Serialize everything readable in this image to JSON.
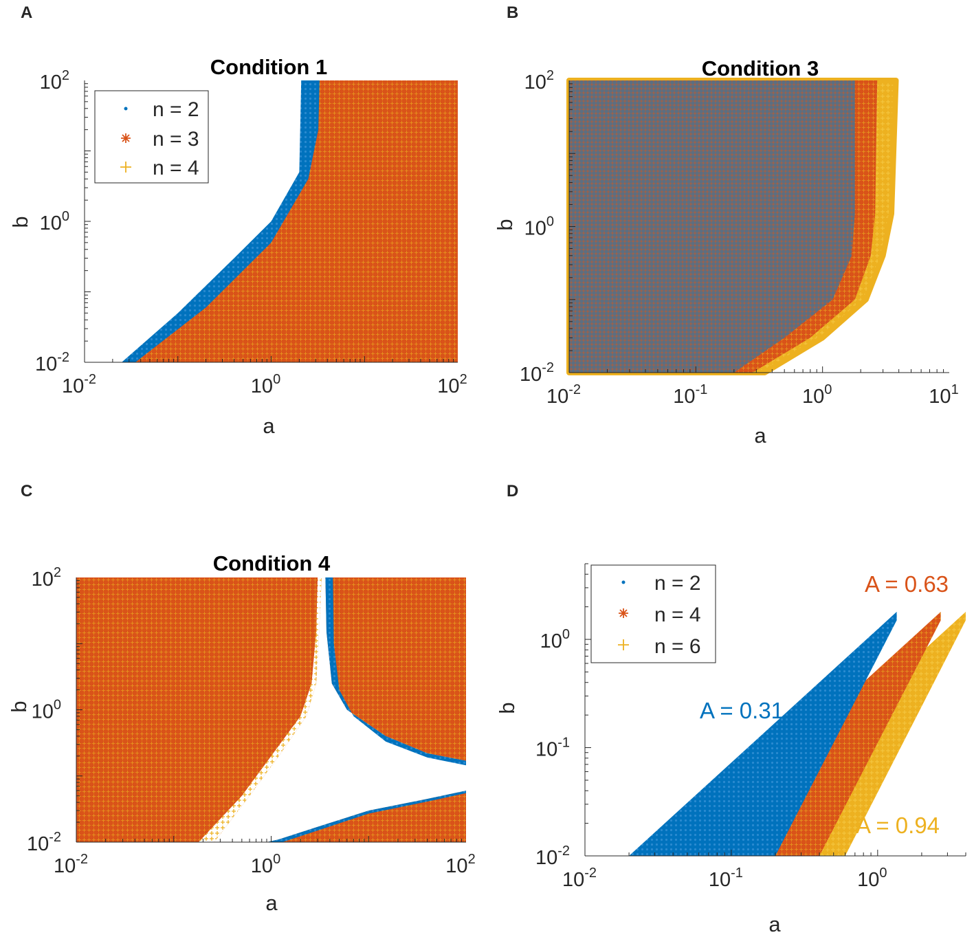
{
  "colors": {
    "n2": "#0072BD",
    "n3": "#D95319",
    "n4": "#EDB120",
    "axis": "#262626"
  },
  "chart_data": [
    {
      "panel": "A",
      "title": "Condition 1",
      "type": "scatter",
      "xlabel": "a",
      "ylabel": "b",
      "xscale": "log",
      "yscale": "log",
      "xlim": [
        0.01,
        100
      ],
      "ylim": [
        0.01,
        100
      ],
      "xticks": [
        {
          "base": "10",
          "exp": "-2"
        },
        {
          "base": "10",
          "exp": "0"
        },
        {
          "base": "10",
          "exp": "2"
        }
      ],
      "yticks": [
        {
          "base": "10",
          "exp": "-2"
        },
        {
          "base": "10",
          "exp": "0"
        },
        {
          "base": "10",
          "exp": "2"
        }
      ],
      "legend": {
        "position": "top-left",
        "entries": [
          "n = 2",
          "n = 3",
          "n = 4"
        ]
      },
      "series": [
        {
          "name": "n = 2",
          "marker": "dot",
          "region_boundary": [
            [
              0.025,
              0.01
            ],
            [
              0.1,
              0.05
            ],
            [
              0.4,
              0.3
            ],
            [
              1.0,
              1.0
            ],
            [
              2.0,
              5.0
            ],
            [
              2.1,
              100
            ]
          ]
        },
        {
          "name": "n = 3",
          "marker": "star",
          "region_boundary": [
            [
              0.035,
              0.01
            ],
            [
              0.2,
              0.06
            ],
            [
              1.0,
              0.5
            ],
            [
              2.5,
              4.0
            ],
            [
              3.2,
              20
            ],
            [
              3.3,
              100
            ]
          ]
        },
        {
          "name": "n = 4",
          "marker": "plus",
          "region_boundary": [
            [
              0.04,
              0.01
            ],
            [
              0.2,
              0.055
            ],
            [
              1.0,
              0.45
            ],
            [
              2.7,
              3.5
            ],
            [
              3.5,
              20
            ],
            [
              3.6,
              100
            ]
          ]
        }
      ]
    },
    {
      "panel": "B",
      "title": "Condition 3",
      "type": "scatter",
      "xlabel": "a",
      "ylabel": "b",
      "xscale": "log",
      "yscale": "log",
      "xlim": [
        0.01,
        10
      ],
      "ylim": [
        0.01,
        100
      ],
      "xticks": [
        {
          "base": "10",
          "exp": "-2"
        },
        {
          "base": "10",
          "exp": "-1"
        },
        {
          "base": "10",
          "exp": "0"
        },
        {
          "base": "10",
          "exp": "1"
        }
      ],
      "yticks": [
        {
          "base": "10",
          "exp": "-2"
        },
        {
          "base": "10",
          "exp": "0"
        },
        {
          "base": "10",
          "exp": "2"
        }
      ],
      "series": [
        {
          "name": "n = 2",
          "marker": "dot",
          "region_boundary": [
            [
              0.2,
              0.01
            ],
            [
              0.5,
              0.03
            ],
            [
              1.2,
              0.1
            ],
            [
              1.7,
              0.4
            ],
            [
              1.8,
              1.5
            ],
            [
              1.8,
              100
            ]
          ]
        },
        {
          "name": "n = 3",
          "marker": "star",
          "region_boundary": [
            [
              0.28,
              0.01
            ],
            [
              0.8,
              0.03
            ],
            [
              1.8,
              0.1
            ],
            [
              2.4,
              0.4
            ],
            [
              2.6,
              1.5
            ],
            [
              2.7,
              100
            ]
          ]
        },
        {
          "name": "n = 4",
          "marker": "plus",
          "region_boundary": [
            [
              0.35,
              0.01
            ],
            [
              1.0,
              0.03
            ],
            [
              2.2,
              0.1
            ],
            [
              3.0,
              0.4
            ],
            [
              3.5,
              1.5
            ],
            [
              3.8,
              100
            ]
          ]
        }
      ]
    },
    {
      "panel": "C",
      "title": "Condition 4",
      "type": "scatter",
      "xlabel": "a",
      "ylabel": "b",
      "xscale": "log",
      "yscale": "log",
      "xlim": [
        0.01,
        100
      ],
      "ylim": [
        0.01,
        100
      ],
      "xticks": [
        {
          "base": "10",
          "exp": "-2"
        },
        {
          "base": "10",
          "exp": "0"
        },
        {
          "base": "10",
          "exp": "2"
        }
      ],
      "yticks": [
        {
          "base": "10",
          "exp": "-2"
        },
        {
          "base": "10",
          "exp": "0"
        },
        {
          "base": "10",
          "exp": "2"
        }
      ],
      "series": [
        {
          "name": "n = 2",
          "marker": "dot",
          "regions": [
            "upper-left",
            "upper-right",
            "lower-right"
          ]
        },
        {
          "name": "n = 3",
          "marker": "star",
          "regions": [
            "upper-left",
            "upper-right",
            "lower-right"
          ]
        },
        {
          "name": "n = 4",
          "marker": "plus",
          "regions": [
            "upper-left",
            "upper-right",
            "lower-right"
          ]
        }
      ]
    },
    {
      "panel": "D",
      "type": "scatter",
      "xlabel": "a",
      "ylabel": "b",
      "xscale": "log",
      "yscale": "log",
      "xlim": [
        0.01,
        4
      ],
      "ylim": [
        0.01,
        5
      ],
      "xticks": [
        {
          "base": "10",
          "exp": "-2"
        },
        {
          "base": "10",
          "exp": "-1"
        },
        {
          "base": "10",
          "exp": "0"
        }
      ],
      "yticks": [
        {
          "base": "10",
          "exp": "-2"
        },
        {
          "base": "10",
          "exp": "-1"
        },
        {
          "base": "10",
          "exp": "0"
        }
      ],
      "legend": {
        "position": "top-left",
        "entries": [
          "n = 2",
          "n = 4",
          "n = 6"
        ]
      },
      "annotations": [
        {
          "text": "A = 0.31",
          "series": "n = 2"
        },
        {
          "text": "A = 0.63",
          "series": "n = 4"
        },
        {
          "text": "A = 0.94",
          "series": "n = 6"
        }
      ],
      "series": [
        {
          "name": "n = 2",
          "marker": "dot",
          "band_upper": [
            [
              0.02,
              0.01
            ],
            [
              1.35,
              1.8
            ]
          ],
          "band_lower": [
            [
              0.2,
              0.01
            ],
            [
              1.35,
              1.5
            ]
          ]
        },
        {
          "name": "n = 4",
          "marker": "star",
          "band_upper": [
            [
              0.04,
              0.01
            ],
            [
              2.7,
              1.8
            ]
          ],
          "band_lower": [
            [
              0.4,
              0.01
            ],
            [
              2.7,
              1.5
            ]
          ]
        },
        {
          "name": "n = 6",
          "marker": "plus",
          "band_upper": [
            [
              0.06,
              0.01
            ],
            [
              4.0,
              1.8
            ]
          ],
          "band_lower": [
            [
              0.6,
              0.01
            ],
            [
              4.0,
              1.5
            ]
          ]
        }
      ]
    }
  ]
}
